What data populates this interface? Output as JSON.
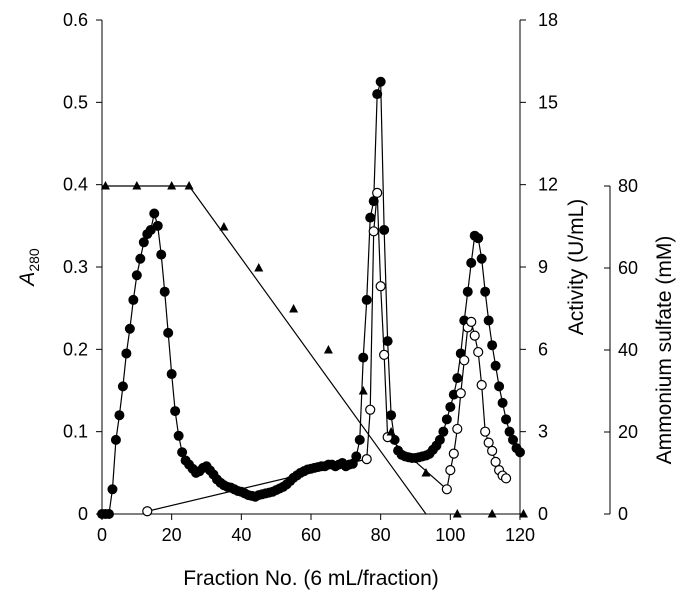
{
  "chart_data": {
    "type": "scatter",
    "x_axis": {
      "label": "Fraction No. (6 mL/fraction)",
      "range": [
        0,
        120
      ],
      "ticks": [
        "0",
        "20",
        "40",
        "60",
        "80",
        "100",
        "120"
      ]
    },
    "y_left": {
      "label_main": "A",
      "label_sub": "280",
      "range": [
        0,
        0.6
      ],
      "ticks": [
        "0",
        "0.1",
        "0.2",
        "0.3",
        "0.4",
        "0.5",
        "0.6"
      ]
    },
    "y_right_activity": {
      "label": "Activity (U/mL)",
      "range": [
        0,
        18
      ],
      "ticks": [
        "0",
        "3",
        "6",
        "9",
        "12",
        "15",
        "18"
      ]
    },
    "y_right_ammonium": {
      "label": "Ammonium sulfate (mM)",
      "range": [
        0,
        80
      ],
      "ticks": [
        "0",
        "20",
        "40",
        "60",
        "80"
      ]
    },
    "series": [
      {
        "marker": "filled-circle",
        "axis": "y_left",
        "x": [
          0,
          1,
          2,
          3,
          4,
          5,
          6,
          7,
          8,
          9,
          10,
          11,
          12,
          13,
          14,
          15,
          16,
          17,
          18,
          19,
          20,
          21,
          22,
          23,
          24,
          25,
          26,
          27,
          28,
          29,
          30,
          31,
          32,
          33,
          34,
          35,
          36,
          37,
          38,
          39,
          40,
          41,
          42,
          43,
          44,
          45,
          46,
          47,
          48,
          49,
          50,
          51,
          52,
          53,
          54,
          55,
          56,
          57,
          58,
          59,
          60,
          61,
          62,
          63,
          64,
          65,
          66,
          67,
          68,
          69,
          70,
          71,
          72,
          73,
          74,
          75,
          76,
          77,
          78,
          79,
          80,
          81,
          82,
          83,
          84,
          85,
          86,
          87,
          88,
          89,
          90,
          91,
          92,
          93,
          94,
          95,
          96,
          97,
          98,
          99,
          100,
          101,
          102,
          103,
          104,
          105,
          106,
          107,
          108,
          109,
          110,
          111,
          112,
          113,
          114,
          115,
          116,
          117,
          118,
          119,
          120
        ],
        "y": [
          0,
          0,
          0,
          0.03,
          0.09,
          0.12,
          0.155,
          0.195,
          0.225,
          0.26,
          0.29,
          0.31,
          0.33,
          0.34,
          0.345,
          0.365,
          0.35,
          0.315,
          0.27,
          0.22,
          0.17,
          0.125,
          0.095,
          0.075,
          0.065,
          0.06,
          0.055,
          0.05,
          0.052,
          0.056,
          0.058,
          0.053,
          0.048,
          0.042,
          0.038,
          0.035,
          0.033,
          0.032,
          0.03,
          0.028,
          0.027,
          0.025,
          0.023,
          0.022,
          0.021,
          0.023,
          0.024,
          0.025,
          0.026,
          0.027,
          0.029,
          0.031,
          0.033,
          0.036,
          0.04,
          0.044,
          0.047,
          0.05,
          0.052,
          0.054,
          0.055,
          0.056,
          0.057,
          0.058,
          0.058,
          0.06,
          0.06,
          0.058,
          0.06,
          0.062,
          0.058,
          0.06,
          0.061,
          0.07,
          0.09,
          0.19,
          0.26,
          0.36,
          0.38,
          0.51,
          0.525,
          0.345,
          0.21,
          0.12,
          0.09,
          0.077,
          0.072,
          0.07,
          0.069,
          0.068,
          0.068,
          0.069,
          0.07,
          0.071,
          0.073,
          0.078,
          0.083,
          0.09,
          0.1,
          0.115,
          0.13,
          0.145,
          0.165,
          0.195,
          0.235,
          0.27,
          0.305,
          0.338,
          0.335,
          0.31,
          0.27,
          0.235,
          0.205,
          0.18,
          0.155,
          0.135,
          0.115,
          0.1,
          0.09,
          0.08,
          0.075
        ]
      },
      {
        "marker": "open-circle",
        "axis": "y_right_activity",
        "x": [
          13,
          76,
          77,
          78,
          79,
          80,
          81,
          82,
          99,
          100,
          101,
          102,
          103,
          104,
          105,
          106,
          107,
          108,
          109,
          110,
          111,
          112,
          113,
          114,
          115,
          116
        ],
        "y": [
          0.1,
          2,
          3.8,
          10.3,
          11.7,
          8.3,
          5.8,
          2.8,
          0.9,
          1.6,
          2.2,
          3.1,
          4.4,
          5.6,
          6.8,
          7,
          6.5,
          5.9,
          4.7,
          3,
          2.6,
          2.3,
          1.9,
          1.6,
          1.4,
          1.3
        ]
      },
      {
        "marker": "filled-triangle",
        "axis": "y_right_ammonium",
        "x": [
          1,
          10,
          20,
          25,
          35,
          45,
          55,
          65,
          75,
          83,
          93,
          102,
          112,
          121
        ],
        "y": [
          80,
          80,
          80,
          80,
          70,
          60,
          50,
          40,
          30,
          20,
          10,
          0,
          0,
          0
        ],
        "gradient_line": {
          "x": [
            0,
            25,
            93
          ],
          "y": [
            80,
            80,
            0
          ]
        }
      }
    ]
  }
}
